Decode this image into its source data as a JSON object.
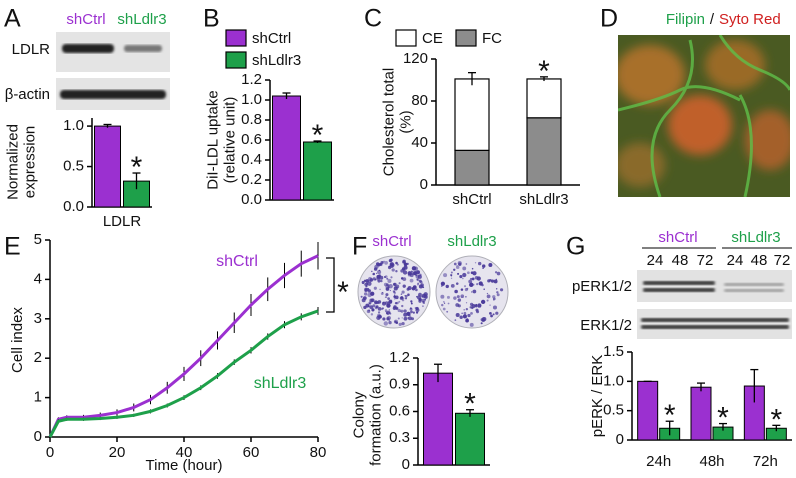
{
  "panel_labels": [
    "A",
    "B",
    "C",
    "D",
    "E",
    "F",
    "G"
  ],
  "blots": {
    "A": {
      "rows": [
        "LDLR",
        "β-actin"
      ]
    },
    "G": {
      "rows": [
        "pERK1/2",
        "ERK1/2"
      ],
      "lanes": [
        24,
        48,
        72,
        24,
        48,
        72
      ]
    }
  },
  "image_D": {
    "labels": [
      "Filipin",
      "/",
      "Syto Red"
    ]
  },
  "chart_data": [
    {
      "type": "bar",
      "categories": [
        "LDLR"
      ],
      "series": [
        {
          "name": "shCtrl",
          "color": "#9b30d0",
          "values": [
            1.0
          ],
          "errors": [
            0.02
          ]
        },
        {
          "name": "shLdlr3",
          "color": "#1ea04a",
          "values": [
            0.32
          ],
          "errors": [
            0.1
          ]
        }
      ],
      "ylabel": [
        "Normalized",
        "expression"
      ],
      "ylim": [
        0,
        1.1
      ],
      "yticks": [
        {
          "value": 0,
          "label": "0.0"
        },
        0.5,
        {
          "value": 1,
          "label": "1.0"
        }
      ],
      "annotations": [
        "*"
      ],
      "legend": false
    },
    {
      "type": "bar",
      "categories": [
        null
      ],
      "series": [
        {
          "name": "shCtrl",
          "color": "#9b30d0",
          "values": [
            1.04
          ],
          "errors": [
            0.03
          ]
        },
        {
          "name": "shLdlr3",
          "color": "#1ea04a",
          "values": [
            0.58
          ],
          "errors": [
            0.01
          ]
        }
      ],
      "ylabel": [
        "DiI-LDL uptake",
        "(relative unit)"
      ],
      "ylim": [
        0,
        1.2
      ],
      "yticks": [
        {
          "value": 0,
          "label": "0.0"
        },
        0.2,
        0.4,
        0.6,
        0.8,
        {
          "value": 1,
          "label": "1.0"
        },
        1.2
      ],
      "annotations": [
        "*"
      ],
      "legend": true
    },
    {
      "type": "stacked_bar",
      "categories": [
        "shCtrl",
        "shLdlr3"
      ],
      "series": [
        {
          "name": "CE",
          "color": "#ffffff",
          "values": [
            68,
            37
          ],
          "errors": [
            6,
            2
          ]
        },
        {
          "name": "FC",
          "color": "#8c8c8c",
          "values": [
            33,
            64
          ]
        }
      ],
      "ylabel": [
        "Cholesterol total",
        "(%)"
      ],
      "ylim": [
        0,
        120
      ],
      "yticks": [
        0,
        40,
        80,
        120
      ],
      "annotations": [
        "*"
      ],
      "legend": true
    },
    {
      "type": "line",
      "x": [
        0,
        2.5,
        5,
        10,
        15,
        20,
        25,
        30,
        35,
        40,
        45,
        50,
        55,
        60,
        65,
        70,
        75,
        80
      ],
      "series": [
        {
          "name": "shCtrl",
          "color": "#9b30d0",
          "values": [
            0,
            0.45,
            0.5,
            0.5,
            0.55,
            0.62,
            0.75,
            0.95,
            1.25,
            1.6,
            2.0,
            2.45,
            2.9,
            3.35,
            3.75,
            4.1,
            4.4,
            4.6
          ],
          "errors": [
            0,
            0.05,
            0.05,
            0.06,
            0.07,
            0.08,
            0.1,
            0.12,
            0.15,
            0.18,
            0.2,
            0.23,
            0.26,
            0.28,
            0.3,
            0.32,
            0.33,
            0.35
          ]
        },
        {
          "name": "shLdlr3",
          "color": "#1ea04a",
          "values": [
            0,
            0.4,
            0.45,
            0.45,
            0.47,
            0.5,
            0.55,
            0.65,
            0.8,
            1.0,
            1.25,
            1.55,
            1.9,
            2.2,
            2.55,
            2.85,
            3.05,
            3.2
          ],
          "errors": [
            0,
            0.05,
            0.04,
            0.04,
            0.04,
            0.04,
            0.04,
            0.05,
            0.05,
            0.06,
            0.06,
            0.07,
            0.07,
            0.08,
            0.08,
            0.09,
            0.09,
            0.1
          ]
        }
      ],
      "xlabel": "Time (hour)",
      "ylabel": [
        "Cell index"
      ],
      "xlim": [
        0,
        80
      ],
      "xticks": [
        0,
        20,
        40,
        60,
        80
      ],
      "ylim": [
        0,
        5
      ],
      "yticks": [
        0,
        1,
        2,
        3,
        4,
        5
      ],
      "annotations": [
        "*"
      ]
    },
    {
      "type": "bar",
      "categories": [
        null
      ],
      "series": [
        {
          "name": "shCtrl",
          "color": "#9b30d0",
          "values": [
            1.03
          ],
          "errors": [
            0.1
          ]
        },
        {
          "name": "shLdlr3",
          "color": "#1ea04a",
          "values": [
            0.58
          ],
          "errors": [
            0.04
          ]
        }
      ],
      "ylabel": [
        "Colony",
        "formation (a.u.)"
      ],
      "ylim": [
        0,
        1.2
      ],
      "yticks": [
        0,
        0.3,
        0.6,
        0.9,
        1.2
      ],
      "annotations": [
        "*"
      ],
      "legend": false
    },
    {
      "type": "bar",
      "categories": [
        "24h",
        "48h",
        "72h"
      ],
      "series": [
        {
          "name": "shCtrl",
          "color": "#9b30d0",
          "values": [
            1.0,
            0.9,
            0.92
          ],
          "errors": [
            0,
            0.07,
            0.28
          ]
        },
        {
          "name": "shLdlr3",
          "color": "#1ea04a",
          "values": [
            0.2,
            0.22,
            0.2
          ],
          "errors": [
            0.12,
            0.06,
            0.05
          ]
        }
      ],
      "ylabel": [
        "pERK / ERK"
      ],
      "ylim": [
        0,
        1.5
      ],
      "yticks": [
        0,
        0.5,
        {
          "value": 1,
          "label": "1.0"
        },
        1.5
      ],
      "annotations": [
        "*",
        "*",
        "*"
      ],
      "legend": false
    }
  ]
}
